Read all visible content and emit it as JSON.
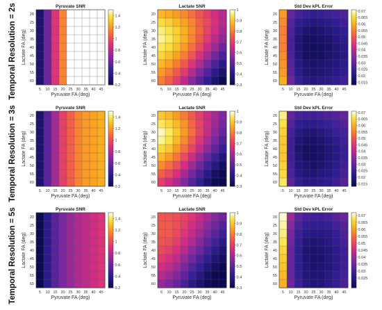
{
  "row_labels": [
    "Temporal Resolution = 2s",
    "Temporal Resolution = 3s",
    "Temporal Resolution = 5s"
  ],
  "chart_data": [
    {
      "type": "heatmap",
      "title": "Pyruvate SNR",
      "xlabel": "Pyruvate FA (deg)",
      "ylabel": "Lactate FA (deg)",
      "x": [
        5,
        10,
        15,
        20,
        25,
        30,
        35,
        40,
        45
      ],
      "y": [
        20,
        25,
        30,
        35,
        40,
        45,
        50,
        55,
        60
      ],
      "colorbar": {
        "ticks": [
          "0.2",
          "0.4",
          "0.6",
          "0.8",
          "1",
          "1.2",
          "1.4"
        ],
        "min": 0.2,
        "max": 1.5
      },
      "values": [
        [
          0.3,
          0.6,
          0.9,
          1.15,
          1.5,
          1.5,
          1.5,
          1.5,
          1.5
        ],
        [
          0.3,
          0.6,
          0.9,
          1.15,
          1.5,
          1.5,
          1.5,
          1.5,
          1.5
        ],
        [
          0.3,
          0.6,
          0.9,
          1.15,
          1.5,
          1.5,
          1.5,
          1.5,
          1.5
        ],
        [
          0.3,
          0.6,
          0.9,
          1.15,
          1.5,
          1.5,
          1.5,
          1.5,
          1.5
        ],
        [
          0.3,
          0.6,
          0.9,
          1.15,
          1.5,
          1.5,
          1.5,
          1.5,
          1.5
        ],
        [
          0.3,
          0.6,
          0.9,
          1.15,
          1.5,
          1.5,
          1.5,
          1.5,
          1.5
        ],
        [
          0.3,
          0.6,
          0.9,
          1.15,
          1.5,
          1.5,
          1.5,
          1.5,
          1.5
        ],
        [
          0.3,
          0.6,
          0.9,
          1.15,
          1.5,
          1.5,
          1.5,
          1.5,
          1.5
        ],
        [
          0.3,
          0.6,
          0.9,
          1.15,
          1.5,
          1.5,
          1.5,
          1.5,
          1.5
        ]
      ]
    },
    {
      "type": "heatmap",
      "title": "Lactate SNR",
      "xlabel": "Pyruvate FA (deg)",
      "ylabel": "Lactate FA (deg)",
      "x": [
        5,
        10,
        15,
        20,
        25,
        30,
        35,
        40,
        45
      ],
      "y": [
        20,
        25,
        30,
        35,
        40,
        45,
        50,
        55,
        60
      ],
      "colorbar": {
        "ticks": [
          "0.3",
          "0.4",
          "0.5",
          "0.6",
          "0.7",
          "0.8",
          "0.9",
          "1"
        ],
        "min": 0.3,
        "max": 1.0
      },
      "values": [
        [
          0.88,
          0.86,
          0.84,
          0.82,
          0.78,
          0.74,
          0.7,
          0.66,
          0.62
        ],
        [
          0.93,
          0.91,
          0.88,
          0.85,
          0.81,
          0.76,
          0.72,
          0.67,
          0.62
        ],
        [
          0.96,
          0.94,
          0.91,
          0.87,
          0.82,
          0.77,
          0.71,
          0.66,
          0.6
        ],
        [
          0.97,
          0.95,
          0.91,
          0.87,
          0.81,
          0.75,
          0.69,
          0.63,
          0.57
        ],
        [
          0.95,
          0.93,
          0.89,
          0.84,
          0.78,
          0.72,
          0.65,
          0.59,
          0.52
        ],
        [
          0.92,
          0.89,
          0.85,
          0.8,
          0.74,
          0.67,
          0.6,
          0.53,
          0.46
        ],
        [
          0.88,
          0.85,
          0.8,
          0.75,
          0.68,
          0.61,
          0.54,
          0.47,
          0.4
        ],
        [
          0.84,
          0.8,
          0.75,
          0.69,
          0.62,
          0.55,
          0.48,
          0.41,
          0.35
        ],
        [
          0.8,
          0.76,
          0.7,
          0.63,
          0.56,
          0.49,
          0.42,
          0.36,
          0.3
        ]
      ]
    },
    {
      "type": "heatmap",
      "title": "Std Dev kPL Error",
      "xlabel": "Pyruvate FA (deg)",
      "ylabel": "Lactate FA (deg)",
      "x": [
        5,
        10,
        15,
        20,
        25,
        30,
        35,
        40,
        45
      ],
      "y": [
        20,
        25,
        30,
        35,
        40,
        45,
        50,
        55,
        60
      ],
      "colorbar": {
        "ticks": [
          "0.015",
          "0.02",
          "0.025",
          "0.03",
          "0.035",
          "0.04",
          "0.045",
          "0.05",
          "0.055",
          "0.06",
          "0.065",
          "0.07"
        ],
        "min": 0.013,
        "max": 0.071
      },
      "values": [
        [
          0.058,
          0.03,
          0.026,
          0.024,
          0.023,
          0.024,
          0.025,
          0.026,
          0.027
        ],
        [
          0.056,
          0.028,
          0.023,
          0.021,
          0.02,
          0.021,
          0.022,
          0.023,
          0.025
        ],
        [
          0.055,
          0.027,
          0.021,
          0.018,
          0.017,
          0.018,
          0.02,
          0.021,
          0.023
        ],
        [
          0.055,
          0.026,
          0.019,
          0.016,
          0.016,
          0.017,
          0.018,
          0.02,
          0.022
        ],
        [
          0.055,
          0.026,
          0.019,
          0.016,
          0.015,
          0.016,
          0.017,
          0.019,
          0.021
        ],
        [
          0.056,
          0.027,
          0.02,
          0.016,
          0.016,
          0.016,
          0.018,
          0.019,
          0.021
        ],
        [
          0.057,
          0.028,
          0.021,
          0.018,
          0.017,
          0.018,
          0.019,
          0.02,
          0.022
        ],
        [
          0.058,
          0.029,
          0.022,
          0.019,
          0.018,
          0.019,
          0.02,
          0.021,
          0.023
        ],
        [
          0.06,
          0.031,
          0.024,
          0.021,
          0.02,
          0.021,
          0.022,
          0.023,
          0.025
        ]
      ]
    },
    {
      "type": "heatmap",
      "title": "Pyruvate SNR",
      "xlabel": "Pyruvate FA (deg)",
      "ylabel": "Lactate FA (deg)",
      "x": [
        5,
        10,
        15,
        20,
        25,
        30,
        35,
        40,
        45
      ],
      "y": [
        20,
        25,
        30,
        35,
        40,
        45,
        50,
        55,
        60
      ],
      "colorbar": {
        "ticks": [
          "0.2",
          "0.4",
          "0.6",
          "0.8",
          "1",
          "1.2",
          "1.4"
        ],
        "min": 0.2,
        "max": 1.5
      },
      "values": [
        [
          0.3,
          0.55,
          0.75,
          0.95,
          1.05,
          1.15,
          1.2,
          1.22,
          1.25
        ],
        [
          0.3,
          0.55,
          0.75,
          0.95,
          1.05,
          1.15,
          1.2,
          1.22,
          1.25
        ],
        [
          0.3,
          0.55,
          0.75,
          0.95,
          1.05,
          1.15,
          1.2,
          1.22,
          1.25
        ],
        [
          0.3,
          0.55,
          0.75,
          0.95,
          1.05,
          1.15,
          1.2,
          1.22,
          1.25
        ],
        [
          0.3,
          0.55,
          0.75,
          0.95,
          1.05,
          1.15,
          1.2,
          1.22,
          1.25
        ],
        [
          0.3,
          0.55,
          0.75,
          0.95,
          1.05,
          1.15,
          1.2,
          1.22,
          1.25
        ],
        [
          0.3,
          0.55,
          0.75,
          0.95,
          1.05,
          1.15,
          1.2,
          1.22,
          1.25
        ],
        [
          0.3,
          0.55,
          0.75,
          0.95,
          1.05,
          1.15,
          1.2,
          1.22,
          1.25
        ],
        [
          0.3,
          0.55,
          0.75,
          0.95,
          1.05,
          1.15,
          1.2,
          1.22,
          1.25
        ]
      ]
    },
    {
      "type": "heatmap",
      "title": "Lactate SNR",
      "xlabel": "Pyruvate FA (deg)",
      "ylabel": "Lactate FA (deg)",
      "x": [
        5,
        10,
        15,
        20,
        25,
        30,
        35,
        40,
        45
      ],
      "y": [
        20,
        25,
        30,
        35,
        40,
        45,
        50,
        55,
        60
      ],
      "colorbar": {
        "ticks": [
          "0.3",
          "0.4",
          "0.5",
          "0.6",
          "0.7",
          "0.8",
          "0.9",
          "1"
        ],
        "min": 0.3,
        "max": 1.0
      },
      "values": [
        [
          0.9,
          0.88,
          0.84,
          0.8,
          0.75,
          0.7,
          0.65,
          0.6,
          0.55
        ],
        [
          0.95,
          0.92,
          0.88,
          0.83,
          0.77,
          0.71,
          0.65,
          0.59,
          0.53
        ],
        [
          0.98,
          0.95,
          0.9,
          0.84,
          0.78,
          0.71,
          0.64,
          0.57,
          0.51
        ],
        [
          0.97,
          0.94,
          0.88,
          0.82,
          0.75,
          0.68,
          0.61,
          0.54,
          0.47
        ],
        [
          0.93,
          0.9,
          0.84,
          0.78,
          0.71,
          0.64,
          0.57,
          0.5,
          0.43
        ],
        [
          0.88,
          0.84,
          0.79,
          0.72,
          0.65,
          0.58,
          0.51,
          0.44,
          0.38
        ],
        [
          0.82,
          0.78,
          0.73,
          0.66,
          0.59,
          0.52,
          0.45,
          0.39,
          0.33
        ],
        [
          0.76,
          0.72,
          0.67,
          0.6,
          0.53,
          0.47,
          0.4,
          0.34,
          0.3
        ],
        [
          0.7,
          0.66,
          0.61,
          0.55,
          0.48,
          0.42,
          0.36,
          0.31,
          0.3
        ]
      ]
    },
    {
      "type": "heatmap",
      "title": "Std Dev kPL Error",
      "xlabel": "Pyruvate FA (deg)",
      "ylabel": "Lactate FA (deg)",
      "x": [
        5,
        10,
        15,
        20,
        25,
        30,
        35,
        40,
        45
      ],
      "y": [
        20,
        25,
        30,
        35,
        40,
        45,
        50,
        55,
        60
      ],
      "colorbar": {
        "ticks": [
          "0.015",
          "0.02",
          "0.025",
          "0.03",
          "0.035",
          "0.04",
          "0.045",
          "0.05",
          "0.055",
          "0.06",
          "0.065",
          "0.07"
        ],
        "min": 0.013,
        "max": 0.071
      },
      "values": [
        [
          0.068,
          0.03,
          0.026,
          0.025,
          0.025,
          0.026,
          0.027,
          0.028,
          0.03
        ],
        [
          0.066,
          0.028,
          0.023,
          0.022,
          0.022,
          0.023,
          0.024,
          0.026,
          0.028
        ],
        [
          0.064,
          0.026,
          0.021,
          0.019,
          0.019,
          0.02,
          0.022,
          0.024,
          0.026
        ],
        [
          0.063,
          0.025,
          0.019,
          0.017,
          0.017,
          0.018,
          0.02,
          0.022,
          0.025
        ],
        [
          0.063,
          0.025,
          0.018,
          0.016,
          0.016,
          0.017,
          0.019,
          0.021,
          0.024
        ],
        [
          0.063,
          0.025,
          0.019,
          0.016,
          0.016,
          0.017,
          0.019,
          0.021,
          0.024
        ],
        [
          0.064,
          0.026,
          0.02,
          0.018,
          0.017,
          0.018,
          0.02,
          0.022,
          0.025
        ],
        [
          0.065,
          0.027,
          0.021,
          0.019,
          0.019,
          0.02,
          0.021,
          0.023,
          0.026
        ],
        [
          0.067,
          0.029,
          0.023,
          0.021,
          0.021,
          0.022,
          0.023,
          0.025,
          0.028
        ]
      ]
    },
    {
      "type": "heatmap",
      "title": "Pyruvate SNR",
      "xlabel": "Pyruvate FA (deg)",
      "ylabel": "Lactate FA (deg)",
      "x": [
        5,
        10,
        15,
        20,
        25,
        30,
        35,
        40,
        45
      ],
      "y": [
        20,
        25,
        30,
        35,
        40,
        45,
        50,
        55,
        60
      ],
      "colorbar": {
        "ticks": [
          "0.2",
          "0.4",
          "0.6",
          "0.8",
          "1",
          "1.2",
          "1.4"
        ],
        "min": 0.2,
        "max": 1.5
      },
      "values": [
        [
          0.2,
          0.4,
          0.55,
          0.65,
          0.72,
          0.78,
          0.82,
          0.86,
          0.9
        ],
        [
          0.2,
          0.4,
          0.55,
          0.65,
          0.72,
          0.78,
          0.82,
          0.86,
          0.9
        ],
        [
          0.2,
          0.4,
          0.55,
          0.65,
          0.72,
          0.78,
          0.82,
          0.86,
          0.9
        ],
        [
          0.2,
          0.4,
          0.55,
          0.65,
          0.72,
          0.78,
          0.82,
          0.86,
          0.9
        ],
        [
          0.2,
          0.4,
          0.55,
          0.65,
          0.72,
          0.78,
          0.82,
          0.86,
          0.9
        ],
        [
          0.2,
          0.4,
          0.55,
          0.65,
          0.72,
          0.78,
          0.82,
          0.86,
          0.9
        ],
        [
          0.2,
          0.4,
          0.55,
          0.65,
          0.72,
          0.78,
          0.82,
          0.86,
          0.9
        ],
        [
          0.2,
          0.4,
          0.55,
          0.65,
          0.72,
          0.78,
          0.82,
          0.86,
          0.9
        ],
        [
          0.2,
          0.4,
          0.55,
          0.65,
          0.72,
          0.78,
          0.82,
          0.86,
          0.9
        ]
      ]
    },
    {
      "type": "heatmap",
      "title": "Lactate SNR",
      "xlabel": "Pyruvate FA (deg)",
      "ylabel": "Lactate FA (deg)",
      "x": [
        5,
        10,
        15,
        20,
        25,
        30,
        35,
        40,
        45
      ],
      "y": [
        20,
        25,
        30,
        35,
        40,
        45,
        50,
        55,
        60
      ],
      "colorbar": {
        "ticks": [
          "0.3",
          "0.4",
          "0.5",
          "0.6",
          "0.7",
          "0.8",
          "0.9",
          "1"
        ],
        "min": 0.3,
        "max": 1.0
      },
      "values": [
        [
          0.74,
          0.74,
          0.73,
          0.71,
          0.68,
          0.64,
          0.6,
          0.56,
          0.52
        ],
        [
          0.75,
          0.75,
          0.73,
          0.7,
          0.66,
          0.62,
          0.57,
          0.52,
          0.48
        ],
        [
          0.75,
          0.75,
          0.72,
          0.68,
          0.64,
          0.59,
          0.54,
          0.49,
          0.44
        ],
        [
          0.74,
          0.73,
          0.7,
          0.66,
          0.61,
          0.56,
          0.5,
          0.45,
          0.4
        ],
        [
          0.72,
          0.7,
          0.67,
          0.62,
          0.57,
          0.52,
          0.46,
          0.41,
          0.36
        ],
        [
          0.69,
          0.67,
          0.63,
          0.58,
          0.53,
          0.47,
          0.42,
          0.37,
          0.33
        ],
        [
          0.66,
          0.63,
          0.59,
          0.54,
          0.48,
          0.43,
          0.38,
          0.33,
          0.3
        ],
        [
          0.62,
          0.59,
          0.55,
          0.5,
          0.44,
          0.39,
          0.34,
          0.3,
          0.3
        ],
        [
          0.58,
          0.55,
          0.51,
          0.46,
          0.4,
          0.35,
          0.31,
          0.3,
          0.3
        ]
      ]
    },
    {
      "type": "heatmap",
      "title": "Std Dev kPL Error",
      "xlabel": "Pyruvate FA (deg)",
      "ylabel": "Lactate FA (deg)",
      "x": [
        5,
        10,
        15,
        20,
        25,
        30,
        35,
        40,
        45
      ],
      "y": [
        20,
        25,
        30,
        35,
        40,
        45,
        50,
        55,
        60
      ],
      "colorbar": {
        "ticks": [
          "0.025",
          "0.03",
          "0.035",
          "0.04",
          "0.045",
          "0.05",
          "0.055",
          "0.06",
          "0.065",
          "0.07"
        ],
        "min": 0.018,
        "max": 0.072
      },
      "values": [
        [
          0.071,
          0.04,
          0.033,
          0.03,
          0.029,
          0.029,
          0.03,
          0.032,
          0.034
        ],
        [
          0.07,
          0.038,
          0.031,
          0.028,
          0.027,
          0.027,
          0.028,
          0.03,
          0.032
        ],
        [
          0.069,
          0.036,
          0.029,
          0.026,
          0.025,
          0.025,
          0.026,
          0.028,
          0.031
        ],
        [
          0.068,
          0.035,
          0.028,
          0.024,
          0.023,
          0.024,
          0.025,
          0.027,
          0.03
        ],
        [
          0.066,
          0.034,
          0.027,
          0.023,
          0.022,
          0.023,
          0.024,
          0.026,
          0.029
        ],
        [
          0.065,
          0.034,
          0.027,
          0.023,
          0.022,
          0.022,
          0.024,
          0.026,
          0.029
        ],
        [
          0.064,
          0.034,
          0.027,
          0.024,
          0.022,
          0.023,
          0.024,
          0.026,
          0.029
        ],
        [
          0.063,
          0.034,
          0.028,
          0.024,
          0.023,
          0.023,
          0.025,
          0.027,
          0.03
        ],
        [
          0.062,
          0.035,
          0.029,
          0.025,
          0.024,
          0.024,
          0.026,
          0.028,
          0.031
        ]
      ]
    }
  ]
}
